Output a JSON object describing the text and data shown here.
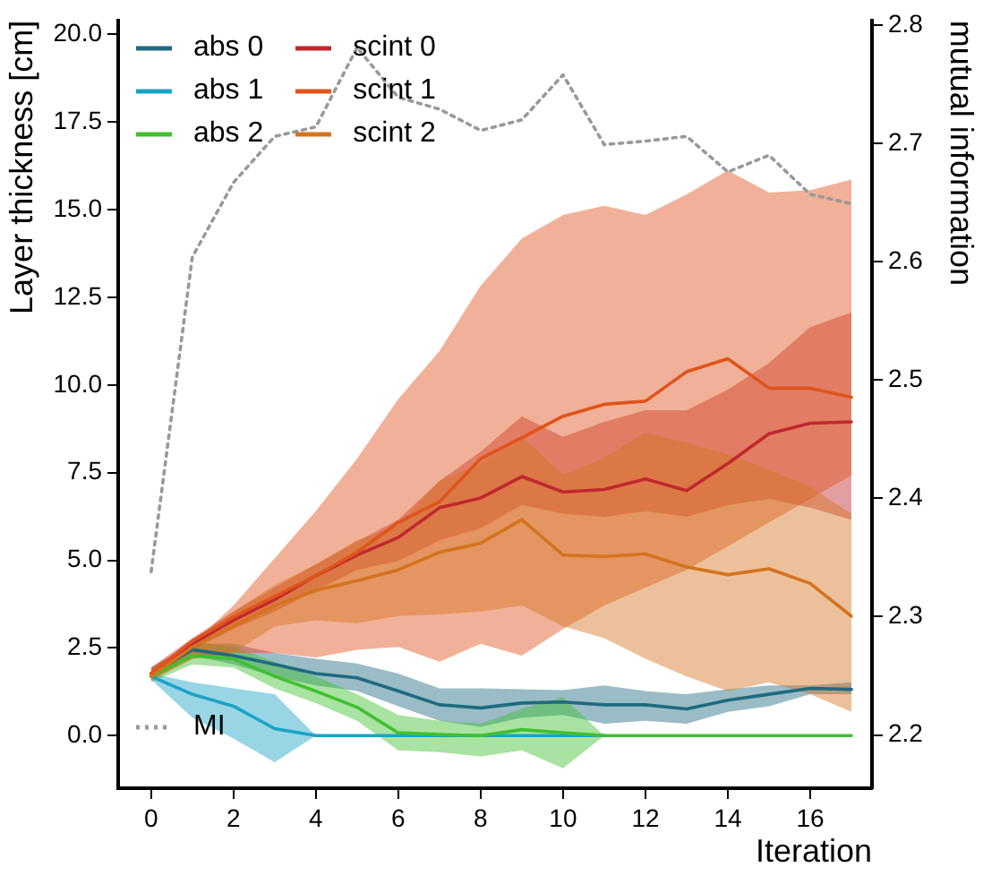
{
  "chart_data": {
    "type": "line",
    "xlabel": "Iteration",
    "ylabel": "Layer thickness [cm]",
    "y2label": "mutual information",
    "x": [
      0,
      1,
      2,
      3,
      4,
      5,
      6,
      7,
      8,
      9,
      10,
      11,
      12,
      13,
      14,
      15,
      16,
      17
    ],
    "xlim": [
      -0.8,
      17.5
    ],
    "xticks": [
      0,
      2,
      4,
      6,
      8,
      10,
      12,
      14,
      16
    ],
    "ylim": [
      -1.5,
      20.4
    ],
    "yticks": [
      {
        "value": 0,
        "label": "0.0"
      },
      {
        "value": 2.5,
        "label": "2.5"
      },
      {
        "value": 5,
        "label": "5.0"
      },
      {
        "value": 7.5,
        "label": "7.5"
      },
      {
        "value": 10,
        "label": "10.0"
      },
      {
        "value": 12.5,
        "label": "12.5"
      },
      {
        "value": 15,
        "label": "15.0"
      },
      {
        "value": 17.5,
        "label": "17.5"
      },
      {
        "value": 20,
        "label": "20.0"
      }
    ],
    "y2lim": [
      2.155,
      2.804
    ],
    "y2ticks": [
      2.2,
      2.3,
      2.4,
      2.5,
      2.6,
      2.7,
      2.8
    ],
    "grid": false,
    "legend": "top left",
    "marker": "none",
    "series": [
      {
        "name": "abs 0",
        "color": "#1f6a80",
        "values": [
          1.77,
          2.45,
          2.28,
          2.03,
          1.77,
          1.65,
          1.27,
          0.88,
          0.79,
          0.93,
          0.96,
          0.88,
          0.88,
          0.76,
          1.01,
          1.18,
          1.35,
          1.32
        ],
        "lower": [
          1.6,
          2.28,
          2.03,
          1.69,
          1.43,
          1.27,
          0.84,
          0.42,
          0.25,
          0.51,
          0.59,
          0.34,
          0.42,
          0.34,
          0.68,
          0.84,
          1.18,
          1.18
        ],
        "upper": [
          1.94,
          2.62,
          2.62,
          2.36,
          2.19,
          2.06,
          1.77,
          1.35,
          1.35,
          1.32,
          1.3,
          1.43,
          1.27,
          1.18,
          1.32,
          1.43,
          1.43,
          1.52
        ]
      },
      {
        "name": "abs 1",
        "color": "#1ba3c6",
        "values": [
          1.69,
          1.18,
          0.84,
          0.2,
          0,
          0,
          0,
          0,
          0,
          0,
          0,
          0,
          null,
          null,
          null,
          null,
          null,
          null
        ],
        "lower": [
          1.6,
          0.51,
          -0.08,
          -0.76,
          0,
          0,
          0,
          0,
          0,
          0,
          0,
          0,
          null,
          null,
          null,
          null,
          null,
          null
        ],
        "upper": [
          1.77,
          1.52,
          1.35,
          1.18,
          0,
          0,
          0,
          0,
          0,
          0,
          0,
          0,
          null,
          null,
          null,
          null,
          null,
          null
        ]
      },
      {
        "name": "abs 2",
        "color": "#3fc02f",
        "values": [
          1.69,
          2.28,
          2.19,
          1.69,
          1.27,
          0.81,
          0.08,
          0.03,
          0,
          0.17,
          0.08,
          0,
          0,
          0,
          0,
          0,
          0,
          0
        ],
        "lower": [
          1.52,
          2.03,
          1.94,
          1.35,
          0.93,
          0.42,
          -0.42,
          -0.47,
          -0.59,
          -0.42,
          -0.93,
          0,
          0,
          0,
          0,
          0,
          0,
          0
        ],
        "upper": [
          1.82,
          2.7,
          2.53,
          2.11,
          1.69,
          1.18,
          0.59,
          0.42,
          0.34,
          0.76,
          1.1,
          0,
          0,
          0,
          0,
          0,
          0,
          0
        ]
      },
      {
        "name": "scint 0",
        "color": "#c0282e",
        "values": [
          1.77,
          2.62,
          3.29,
          3.88,
          4.56,
          5.15,
          5.65,
          6.5,
          6.78,
          7.39,
          6.95,
          7.02,
          7.32,
          6.99,
          7.76,
          8.61,
          8.91,
          8.95
        ],
        "lower": [
          1.6,
          2.45,
          3.04,
          3.54,
          4.14,
          4.73,
          4.98,
          5.57,
          5.91,
          6.58,
          6.33,
          6.24,
          6.41,
          6.24,
          6.58,
          6.75,
          6.5,
          6.16
        ],
        "upper": [
          1.94,
          2.78,
          3.54,
          4.22,
          4.89,
          5.54,
          6.16,
          7.26,
          8.1,
          9.11,
          8.52,
          8.95,
          9.28,
          9.28,
          9.87,
          10.63,
          11.65,
          12.07
        ]
      },
      {
        "name": "scint 1",
        "color": "#e0531a",
        "values": [
          1.77,
          2.7,
          3.38,
          3.97,
          4.56,
          5.23,
          6.08,
          6.67,
          7.9,
          8.5,
          9.11,
          9.45,
          9.54,
          10.38,
          10.75,
          9.91,
          9.91,
          9.65
        ],
        "lower": [
          1.6,
          2.19,
          2.36,
          2.36,
          2.23,
          2.45,
          2.53,
          2.11,
          2.62,
          2.28,
          3.04,
          3.71,
          4.22,
          4.73,
          5.4,
          6.08,
          6.75,
          7.43
        ],
        "upper": [
          1.94,
          2.62,
          3.71,
          5.06,
          6.41,
          7.9,
          9.6,
          10.97,
          12.83,
          14.18,
          14.85,
          15.11,
          14.85,
          15.44,
          16.12,
          15.49,
          15.56,
          15.86
        ]
      },
      {
        "name": "scint 2",
        "color": "#d4731e",
        "values": [
          1.69,
          2.53,
          3.12,
          3.71,
          4.14,
          4.42,
          4.73,
          5.23,
          5.49,
          6.16,
          5.15,
          5.11,
          5.18,
          4.81,
          4.59,
          4.76,
          4.34,
          3.41
        ],
        "lower": [
          1.55,
          2.19,
          2.36,
          3.12,
          3.29,
          3.21,
          3.41,
          3.46,
          3.54,
          3.71,
          3.12,
          2.78,
          2.19,
          1.69,
          1.27,
          1.52,
          1.18,
          0.68
        ],
        "upper": [
          1.86,
          2.7,
          3.54,
          4.3,
          4.89,
          5.57,
          5.99,
          7.26,
          7.76,
          8.52,
          7.43,
          7.93,
          8.64,
          8.35,
          8.02,
          7.59,
          7.09,
          6.33
        ]
      },
      {
        "name": "MI",
        "color": "#999999",
        "axis": "y2",
        "line_style": "dotted",
        "values": [
          2.338,
          2.604,
          2.667,
          2.706,
          2.714,
          2.781,
          2.739,
          2.729,
          2.711,
          2.72,
          2.758,
          2.699,
          2.702,
          2.706,
          2.676,
          2.69,
          2.657,
          2.649
        ]
      }
    ]
  }
}
